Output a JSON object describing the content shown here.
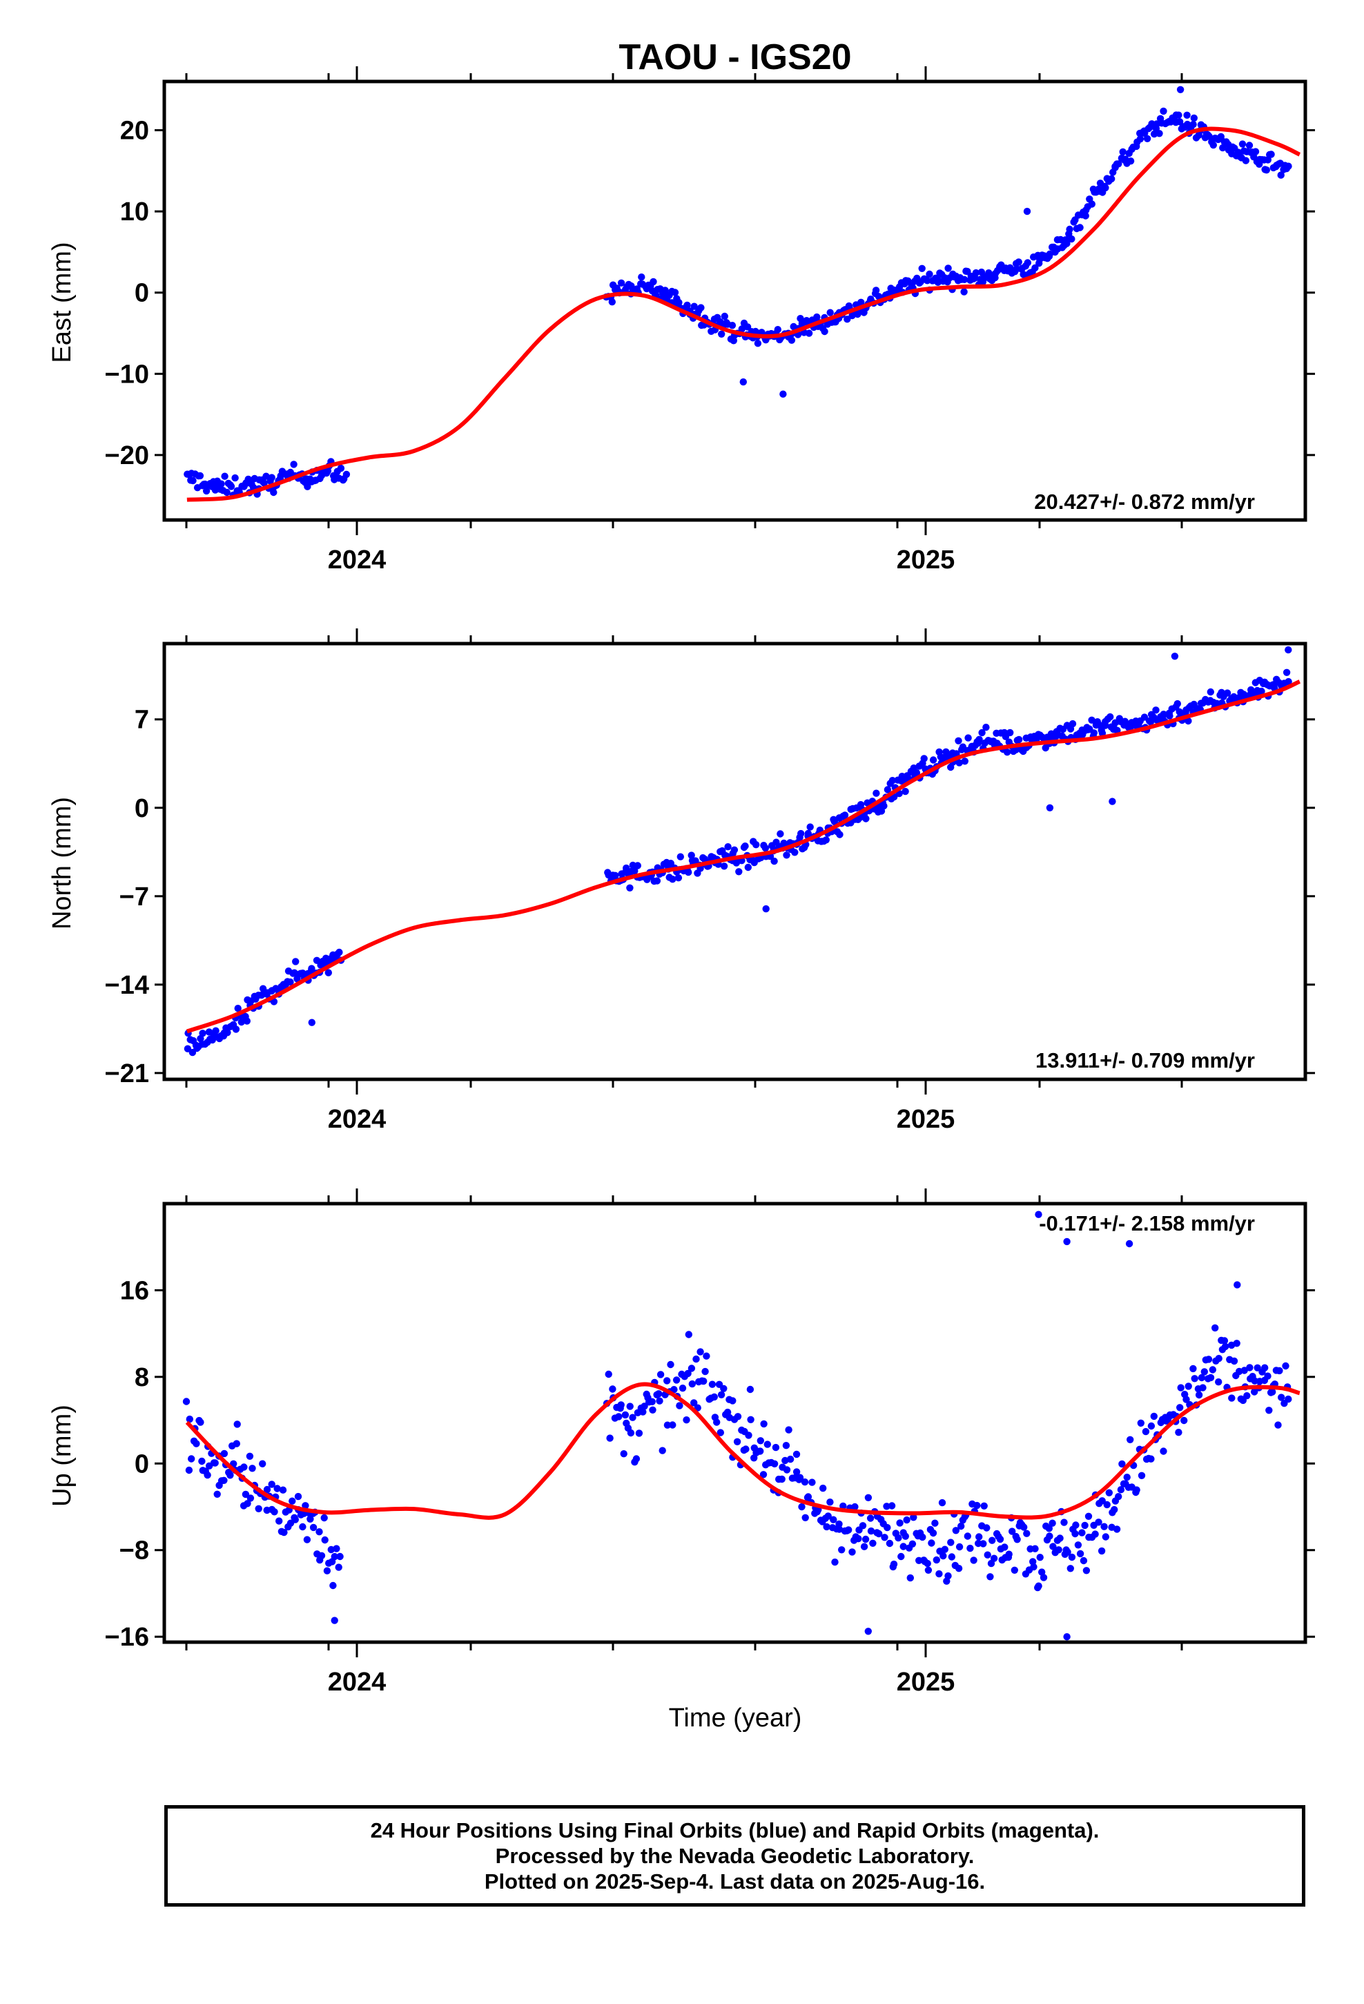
{
  "footer": {
    "line1": "24 Hour Positions Using Final Orbits (blue) and Rapid Orbits (magenta).",
    "line2": "Processed by the Nevada Geodetic Laboratory.",
    "line3": "Plotted on 2025-Sep-4. Last data on 2025-Aug-16."
  },
  "colors": {
    "data": "#0000ff",
    "model": "#ff0000",
    "frame": "#000000"
  },
  "chart_data": [
    {
      "type": "scatter",
      "title": "TAOU - IGS20",
      "ylabel": "East (mm)",
      "xlabel": "",
      "xlim": [
        2023.66,
        2025.67
      ],
      "ylim": [
        -28,
        26
      ],
      "yticks": [
        -20,
        -10,
        0,
        10,
        20
      ],
      "xticks": [
        "2024",
        "2025"
      ],
      "grid": false,
      "rate": "20.427+/- 0.872 mm/yr",
      "series": [
        {
          "kind": "points",
          "segments": [
            {
              "x": [
                2023.7,
                2023.72,
                2023.75,
                2023.78,
                2023.8,
                2023.83,
                2023.86,
                2023.89,
                2023.92,
                2023.95,
                2023.98
              ],
              "y": [
                -23,
                -23,
                -24,
                -24,
                -23.5,
                -24,
                -23,
                -22.5,
                -22.5,
                -22,
                -23
              ]
            },
            {
              "x": [
                2024.44,
                2024.48,
                2024.52,
                2024.56,
                2024.6,
                2024.64,
                2024.68,
                2024.72,
                2024.76,
                2024.8,
                2024.84,
                2024.88,
                2024.92,
                2024.96,
                2025.0,
                2025.04,
                2025.08,
                2025.12,
                2025.16,
                2025.2,
                2025.24,
                2025.28,
                2025.32,
                2025.36,
                2025.4,
                2025.44,
                2025.48,
                2025.52,
                2025.56,
                2025.6,
                2025.64
              ],
              "y": [
                0,
                0.5,
                0.5,
                -1,
                -2.5,
                -4,
                -5,
                -5.5,
                -5,
                -4,
                -3,
                -2,
                -0.5,
                0.5,
                1.5,
                2,
                1.5,
                2.5,
                3,
                3.5,
                6,
                10,
                14,
                17,
                20.5,
                21.5,
                20,
                18.5,
                17,
                16,
                15
              ]
            }
          ],
          "outliers": [
            {
              "x": 2024.75,
              "y": -12.5
            },
            {
              "x": 2024.68,
              "y": -11
            },
            {
              "x": 2025.18,
              "y": 10
            },
            {
              "x": 2025.45,
              "y": 25
            }
          ]
        },
        {
          "kind": "model",
          "x": [
            2023.7,
            2023.78,
            2023.86,
            2023.94,
            2024.02,
            2024.1,
            2024.18,
            2024.26,
            2024.34,
            2024.42,
            2024.5,
            2024.58,
            2024.66,
            2024.74,
            2024.82,
            2024.9,
            2024.98,
            2025.06,
            2025.14,
            2025.22,
            2025.3,
            2025.38,
            2025.46,
            2025.54,
            2025.62,
            2025.66
          ],
          "y": [
            -25.5,
            -25.2,
            -23.5,
            -21.5,
            -20.3,
            -19.5,
            -16.5,
            -10.5,
            -4.5,
            -0.8,
            -0.3,
            -2.5,
            -4.8,
            -5.3,
            -3.5,
            -1.5,
            0.2,
            0.7,
            1.0,
            3.0,
            8.0,
            14.5,
            19.5,
            20.0,
            18.3,
            17.0
          ]
        }
      ]
    },
    {
      "type": "scatter",
      "ylabel": "North (mm)",
      "xlabel": "",
      "xlim": [
        2023.66,
        2025.67
      ],
      "ylim": [
        -21.5,
        13
      ],
      "yticks": [
        -21,
        -14,
        -7,
        0,
        7
      ],
      "xticks": [
        "2024",
        "2025"
      ],
      "grid": false,
      "rate": "13.911+/- 0.709 mm/yr",
      "series": [
        {
          "kind": "points",
          "segments": [
            {
              "x": [
                2023.7,
                2023.73,
                2023.76,
                2023.79,
                2023.82,
                2023.85,
                2023.88,
                2023.91,
                2023.94,
                2023.97
              ],
              "y": [
                -19,
                -18.5,
                -18,
                -17,
                -15.5,
                -14.5,
                -13.5,
                -13,
                -12.5,
                -11.5
              ]
            },
            {
              "x": [
                2024.44,
                2024.48,
                2024.52,
                2024.56,
                2024.6,
                2024.64,
                2024.68,
                2024.72,
                2024.76,
                2024.8,
                2024.84,
                2024.88,
                2024.92,
                2024.96,
                2025.0,
                2025.04,
                2025.08,
                2025.12,
                2025.16,
                2025.2,
                2025.24,
                2025.28,
                2025.32,
                2025.36,
                2025.4,
                2025.44,
                2025.48,
                2025.52,
                2025.56,
                2025.6,
                2025.64
              ],
              "y": [
                -5,
                -5.5,
                -5,
                -5,
                -4.5,
                -4,
                -4,
                -3.5,
                -3,
                -2.5,
                -1.5,
                -0.5,
                0.5,
                2,
                3,
                4,
                5,
                5.5,
                5,
                5.5,
                6,
                6,
                6.5,
                6.5,
                7,
                7.5,
                8,
                8.5,
                9,
                9.5,
                10
              ]
            }
          ],
          "outliers": [
            {
              "x": 2023.92,
              "y": -17
            },
            {
              "x": 2024.72,
              "y": -8
            },
            {
              "x": 2025.22,
              "y": 0
            },
            {
              "x": 2025.33,
              "y": 0.5
            },
            {
              "x": 2025.44,
              "y": 12
            },
            {
              "x": 2025.64,
              "y": 12.5
            }
          ]
        },
        {
          "kind": "model",
          "x": [
            2023.7,
            2023.78,
            2023.86,
            2023.94,
            2024.02,
            2024.1,
            2024.18,
            2024.26,
            2024.34,
            2024.42,
            2024.5,
            2024.58,
            2024.66,
            2024.74,
            2024.82,
            2024.9,
            2024.98,
            2025.06,
            2025.14,
            2025.22,
            2025.3,
            2025.38,
            2025.46,
            2025.54,
            2025.62,
            2025.66
          ],
          "y": [
            -17.7,
            -16.5,
            -14.8,
            -12.8,
            -10.9,
            -9.5,
            -8.9,
            -8.5,
            -7.6,
            -6.3,
            -5.3,
            -4.7,
            -4.0,
            -3.4,
            -2.0,
            0,
            2.2,
            4.0,
            4.8,
            5.2,
            5.5,
            6.2,
            7.2,
            8.2,
            9.2,
            10.0
          ]
        }
      ]
    },
    {
      "type": "scatter",
      "ylabel": "Up (mm)",
      "xlabel": "Time (year)",
      "xlim": [
        2023.66,
        2025.67
      ],
      "ylim": [
        -16.5,
        24
      ],
      "yticks": [
        -16,
        -8,
        0,
        8,
        16
      ],
      "xticks": [
        "2024",
        "2025"
      ],
      "grid": false,
      "rate": "-0.171+/- 2.158 mm/yr",
      "series": [
        {
          "kind": "points",
          "segments": [
            {
              "x": [
                2023.7,
                2023.73,
                2023.76,
                2023.79,
                2023.82,
                2023.85,
                2023.88,
                2023.91,
                2023.94,
                2023.97
              ],
              "y": [
                3,
                1,
                -1,
                0,
                -2,
                -4,
                -5,
                -4,
                -7,
                -9
              ]
            },
            {
              "x": [
                2024.44,
                2024.48,
                2024.52,
                2024.56,
                2024.6,
                2024.64,
                2024.68,
                2024.72,
                2024.76,
                2024.8,
                2024.84,
                2024.88,
                2024.92,
                2024.96,
                2025.0,
                2025.04,
                2025.08,
                2025.12,
                2025.16,
                2025.2,
                2025.24,
                2025.28,
                2025.32,
                2025.36,
                2025.4,
                2025.44,
                2025.48,
                2025.52,
                2025.56,
                2025.6,
                2025.64
              ],
              "y": [
                5,
                3,
                5,
                6,
                8,
                6,
                3,
                1,
                -1,
                -4,
                -5,
                -7,
                -6,
                -7,
                -6,
                -8,
                -6,
                -7,
                -6,
                -9,
                -7,
                -7,
                -5,
                -1,
                2,
                4,
                7,
                9,
                8,
                7,
                6
              ]
            }
          ],
          "outliers": [
            {
              "x": 2023.96,
              "y": -14.5
            },
            {
              "x": 2024.9,
              "y": -15.5
            },
            {
              "x": 2025.2,
              "y": 23
            },
            {
              "x": 2025.25,
              "y": 20.5
            },
            {
              "x": 2025.36,
              "y": 20.3
            },
            {
              "x": 2025.55,
              "y": 16.5
            },
            {
              "x": 2025.25,
              "y": -16
            }
          ]
        },
        {
          "kind": "model",
          "x": [
            2023.7,
            2023.78,
            2023.86,
            2023.94,
            2024.02,
            2024.1,
            2024.18,
            2024.26,
            2024.34,
            2024.42,
            2024.5,
            2024.58,
            2024.66,
            2024.74,
            2024.82,
            2024.9,
            2024.98,
            2025.06,
            2025.14,
            2025.22,
            2025.3,
            2025.38,
            2025.46,
            2025.54,
            2025.62,
            2025.66
          ],
          "y": [
            3.8,
            -0.5,
            -3.5,
            -4.5,
            -4.3,
            -4.2,
            -4.7,
            -4.7,
            -0.8,
            4.5,
            7.3,
            5.5,
            1.0,
            -2.5,
            -4.0,
            -4.5,
            -4.6,
            -4.5,
            -4.9,
            -4.8,
            -3.0,
            1.0,
            4.8,
            6.8,
            7.0,
            6.5
          ]
        }
      ]
    }
  ]
}
